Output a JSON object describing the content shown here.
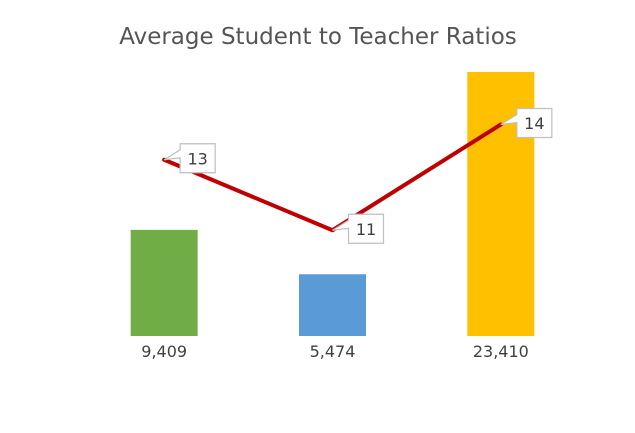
{
  "chart_data": {
    "type": "bar",
    "title": "Average Student to Teacher Ratios",
    "categories": [
      "9,409",
      "5,474",
      "23,410"
    ],
    "series": [
      {
        "type": "bar",
        "values": [
          9409,
          5474,
          23410
        ],
        "colors": [
          "#70ad47",
          "#5b9bd5",
          "#ffc000"
        ]
      },
      {
        "type": "line",
        "values": [
          13,
          11,
          14
        ],
        "color": "#c00000"
      }
    ],
    "ylim": [
      0,
      25000
    ],
    "y2lim": [
      8,
      16
    ],
    "data_labels": [
      "13",
      "11",
      "14"
    ],
    "grid": false,
    "legend": "none"
  }
}
